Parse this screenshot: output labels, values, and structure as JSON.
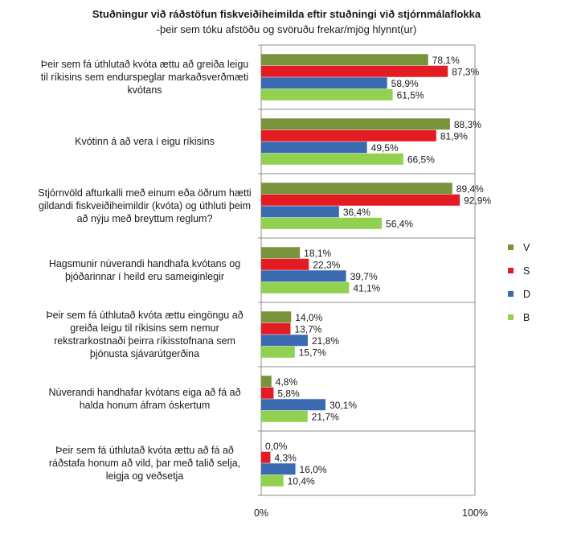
{
  "chart_data": {
    "type": "bar",
    "orientation": "horizontal",
    "title": "Stuðningur við ráðstöfun fiskveiðiheimilda eftir stuðningi við stjórnmálaflokka",
    "subtitle": "-þeir sem tóku afstöðu og svöruðu frekar/mjög hlynnt(ur)",
    "xlim": [
      0,
      100
    ],
    "x_ticks": [
      "0%",
      "100%"
    ],
    "grid": false,
    "legend_position": "right",
    "categories": [
      "Þeir sem fá úthlutað kvóta ættu að greiða leigu til ríkisins sem endurspeglar markaðsverðmæti kvótans",
      "Kvótinn á að vera í eigu ríkisins",
      "Stjórnvöld afturkalli með einum eða öðrum hætti gildandi fiskveiðiheimildir (kvóta) og úthluti þeim að nýju með breyttum reglum?",
      "Hagsmunir núverandi handhafa kvótans og þjóðarinnar í heild eru sameiginlegir",
      "Þeir sem fá úthlutað kvóta ættu eingöngu að greiða leigu til ríkisins sem nemur rekstrarkostnaði þeirra ríkisstofnana sem þjónusta sjávarútgerðina",
      "Núverandi handhafar kvótans eiga að fá að halda honum áfram óskertum",
      "Þeir sem fá úthlutað kvóta ættu að fá að ráðstafa honum að vild, þar með talið selja, leigja og veðsetja"
    ],
    "series": [
      {
        "name": "V",
        "color": "#77933c",
        "values": [
          78.1,
          88.3,
          89.4,
          18.1,
          14.0,
          4.8,
          0.0
        ],
        "labels": [
          "78,1%",
          "88,3%",
          "89,4%",
          "18,1%",
          "14,0%",
          "4,8%",
          "0,0%"
        ]
      },
      {
        "name": "S",
        "color": "#e31b23",
        "values": [
          87.3,
          81.9,
          92.9,
          22.3,
          13.7,
          5.8,
          4.3
        ],
        "labels": [
          "87,3%",
          "81,9%",
          "92,9%",
          "22,3%",
          "13,7%",
          "5,8%",
          "4,3%"
        ]
      },
      {
        "name": "D",
        "color": "#3a6ab0",
        "values": [
          58.9,
          49.5,
          36.4,
          39.7,
          21.8,
          30.1,
          16.0
        ],
        "labels": [
          "58,9%",
          "49,5%",
          "36,4%",
          "39,7%",
          "21,8%",
          "30,1%",
          "16,0%"
        ]
      },
      {
        "name": "B",
        "color": "#92d050",
        "values": [
          61.5,
          66.5,
          56.4,
          41.1,
          15.7,
          21.7,
          10.4
        ],
        "labels": [
          "61,5%",
          "66,5%",
          "56,4%",
          "41,1%",
          "15,7%",
          "21,7%",
          "10,4%"
        ]
      }
    ]
  }
}
